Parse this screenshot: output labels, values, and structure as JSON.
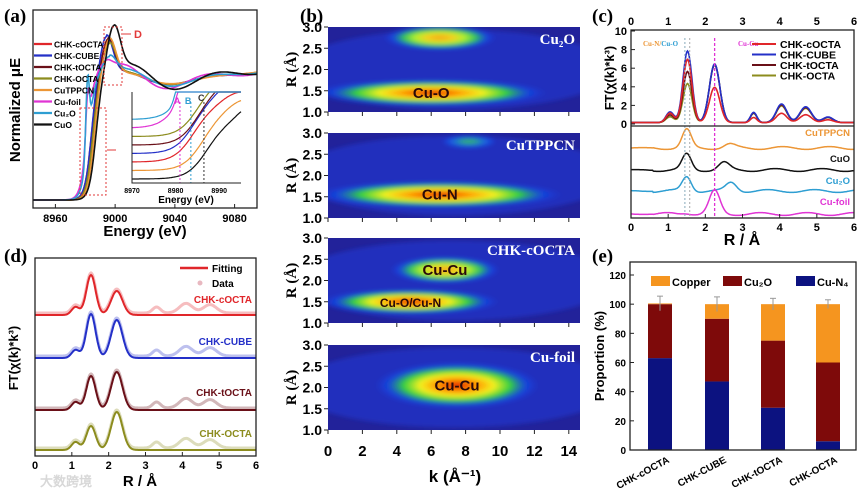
{
  "panel_labels": [
    "(a)",
    "(b)",
    "(c)",
    "(d)",
    "(e)"
  ],
  "watermark": "大数跨境",
  "colors": {
    "CHK-cOCTA": "#e0262a",
    "CHK-CUBE": "#2430c8",
    "CHK-tOCTA": "#6a1018",
    "CHK-OCTA": "#8c8c1e",
    "CuTPPCN": "#ec9636",
    "Cu-foil": "#e034d4",
    "Cu2O": "#2e9ed2",
    "CuO": "#111111"
  },
  "chart_data": [
    {
      "panel": "a",
      "type": "line",
      "xlabel": "Energy (eV)",
      "ylabel": "Normalized μE",
      "xlim": [
        8945,
        9095
      ],
      "xticks": [
        8960,
        9000,
        9040,
        9080
      ],
      "annotation": "D",
      "legend": [
        "CHK-cOCTA",
        "CHK-CUBE",
        "CHK-tOCTA",
        "CHK-OCTA",
        "CuTPPCN",
        "Cu-foil",
        "Cu2O",
        "CuO"
      ],
      "legend_display": [
        "CHK-cOCTA",
        "CHK-CUBE",
        "CHK-tOCTA",
        "CHK-OCTA",
        "CuTPPCN",
        "Cu-foil",
        "Cu₂O",
        "CuO"
      ],
      "series": [
        {
          "name": "CHK-cOCTA",
          "edge": 8984,
          "wl": 0.28,
          "wl_e": 8995,
          "osc": 0.05,
          "pre": 0.0
        },
        {
          "name": "CHK-CUBE",
          "edge": 8984,
          "wl": 0.32,
          "wl_e": 8994,
          "osc": 0.05,
          "pre": 0.0
        },
        {
          "name": "CHK-tOCTA",
          "edge": 8985,
          "wl": 0.3,
          "wl_e": 8995,
          "osc": 0.05,
          "pre": 0.0
        },
        {
          "name": "CHK-OCTA",
          "edge": 8985,
          "wl": 0.26,
          "wl_e": 8996,
          "osc": 0.05,
          "pre": 0.0
        },
        {
          "name": "CuTPPCN",
          "edge": 8986,
          "wl": 0.3,
          "wl_e": 8996,
          "osc": 0.04,
          "pre": 0.0
        },
        {
          "name": "Cu-foil",
          "edge": 8981,
          "wl": 0.1,
          "wl_e": 8993,
          "osc": 0.12,
          "pre": 0.3
        },
        {
          "name": "Cu2O",
          "edge": 8982,
          "wl": 0.15,
          "wl_e": 8996,
          "osc": 0.08,
          "pre": 0.55
        },
        {
          "name": "CuO",
          "edge": 8987,
          "wl": 0.4,
          "wl_e": 8999,
          "osc": 0.13,
          "pre": 0.0
        }
      ],
      "inset": {
        "xlabel": "Energy (eV)",
        "xlim": [
          8970,
          8995
        ],
        "xticks": [
          8970,
          8980,
          8990
        ],
        "markers": [
          {
            "label": "A",
            "x": 8981
          },
          {
            "label": "B",
            "x": 8983.5
          },
          {
            "label": "C",
            "x": 8986.5
          }
        ]
      }
    },
    {
      "panel": "b",
      "type": "heatmap",
      "xlabel": "k (Å⁻¹)",
      "ylabel": "R (Å)",
      "xlim": [
        0,
        15
      ],
      "xticks": [
        0,
        2,
        4,
        6,
        8,
        10,
        12,
        14
      ],
      "yticks": [
        "3.0",
        "2.5",
        "2.0",
        "1.5",
        "1.0"
      ],
      "ylim": [
        1.0,
        3.0
      ],
      "maps": [
        {
          "title": "Cu₂O",
          "features": [
            {
              "label": "",
              "k": 6.5,
              "R": 2.75,
              "rk": 3.3,
              "rR": 0.3,
              "level": "mid"
            },
            {
              "label": "Cu-O",
              "k": 6,
              "R": 1.45,
              "rk": 6.8,
              "rR": 0.32,
              "level": "hot"
            }
          ]
        },
        {
          "title": "CuTPPCN",
          "features": [
            {
              "label": "",
              "k": 8.2,
              "R": 2.8,
              "rk": 1.6,
              "rR": 0.16,
              "level": "weak"
            },
            {
              "label": "Cu-N",
              "k": 6.5,
              "R": 1.55,
              "rk": 7.2,
              "rR": 0.32,
              "level": "hot"
            }
          ]
        },
        {
          "title": "CHK-cOCTA",
          "features": [
            {
              "label": "Cu-Cu",
              "k": 6.8,
              "R": 2.25,
              "rk": 3.2,
              "rR": 0.32,
              "level": "mid"
            },
            {
              "label": "Cu-O/Cu-N",
              "k": 4.8,
              "R": 1.5,
              "rk": 5.2,
              "rR": 0.3,
              "level": "hot"
            }
          ]
        },
        {
          "title": "Cu-foil",
          "features": [
            {
              "label": "Cu-Cu",
              "k": 7.5,
              "R": 2.05,
              "rk": 4.8,
              "rR": 0.55,
              "level": "hot"
            }
          ]
        }
      ]
    },
    {
      "panel": "c",
      "type": "line",
      "xlabel": "R / Å",
      "ylabel": "FT(χ(k)*k³)",
      "xlim": [
        0,
        6
      ],
      "xticks": [
        0,
        1,
        2,
        3,
        4,
        5,
        6
      ],
      "ylim": [
        0,
        10
      ],
      "yticks": [
        0,
        2,
        4,
        6,
        8,
        10
      ],
      "annotations": [
        {
          "text": "Cu-N",
          "color": "#ec9636"
        },
        {
          "text": "/",
          "color": "#ec9636"
        },
        {
          "text": "Cu-O",
          "color": "#2e9ed2"
        },
        {
          "text": "Cu-Cu",
          "color": "#e034d4"
        }
      ],
      "series": [
        {
          "name": "CHK-cOCTA",
          "p1": 6.8,
          "p2": 3.8,
          "tail": 1.0
        },
        {
          "name": "CHK-CUBE",
          "p1": 7.7,
          "p2": 6.3,
          "tail": 2.0
        },
        {
          "name": "CHK-tOCTA",
          "p1": 5.5,
          "p2": 6.2,
          "tail": 1.9
        },
        {
          "name": "CHK-OCTA",
          "p1": 4.2,
          "p2": 6.3,
          "tail": 1.8
        }
      ],
      "references": [
        {
          "name": "CuTPPCN",
          "label": "CuTPPCN",
          "p1": 1.5,
          "p2": 0.3,
          "c2": 2.65
        },
        {
          "name": "CuO",
          "label": "CuO",
          "p1": 1.3,
          "p2": 0.6,
          "c2": 2.5
        },
        {
          "name": "Cu2O",
          "label": "Cu₂O",
          "p1": 1.2,
          "p2": 0.7,
          "c2": 2.7
        },
        {
          "name": "Cu-foil",
          "label": "Cu-foil",
          "p1": 0.1,
          "p2": 1.9,
          "c2": 2.25
        }
      ]
    },
    {
      "panel": "d",
      "type": "line",
      "xlabel": "R / Å",
      "ylabel": "FT(χ(k)*k³)",
      "xlim": [
        0,
        6
      ],
      "xticks": [
        0,
        1,
        2,
        3,
        4,
        5,
        6
      ],
      "legend": [
        "Fitting",
        "Data"
      ],
      "series": [
        {
          "name": "CHK-cOCTA",
          "p1": 1.0,
          "p2": 0.6
        },
        {
          "name": "CHK-CUBE",
          "p1": 1.1,
          "p2": 0.95
        },
        {
          "name": "CHK-tOCTA",
          "p1": 0.85,
          "p2": 0.95
        },
        {
          "name": "CHK-OCTA",
          "p1": 0.6,
          "p2": 0.95
        }
      ]
    },
    {
      "panel": "e",
      "type": "bar",
      "stacked": true,
      "ylabel": "Proportion (%)",
      "ylim": [
        0,
        125
      ],
      "yticks": [
        0,
        20,
        40,
        60,
        80,
        100,
        120
      ],
      "categories": [
        "CHK-cOCTA",
        "CHK-CUBE",
        "CHK-tOCTA",
        "CHK-OCTA"
      ],
      "legend_display": [
        "Copper",
        "Cu₂O",
        "Cu-N₄"
      ],
      "series": [
        {
          "name": "Cu-N4",
          "color": "#0c1280",
          "values": [
            63,
            47,
            29,
            6
          ]
        },
        {
          "name": "Cu2O",
          "color": "#7e0a0a",
          "values": [
            37,
            43,
            46,
            54
          ]
        },
        {
          "name": "Copper",
          "color": "#f5951f",
          "values": [
            0.5,
            10,
            25,
            40
          ]
        }
      ],
      "error_bars": [
        5,
        5,
        4,
        3
      ]
    }
  ]
}
